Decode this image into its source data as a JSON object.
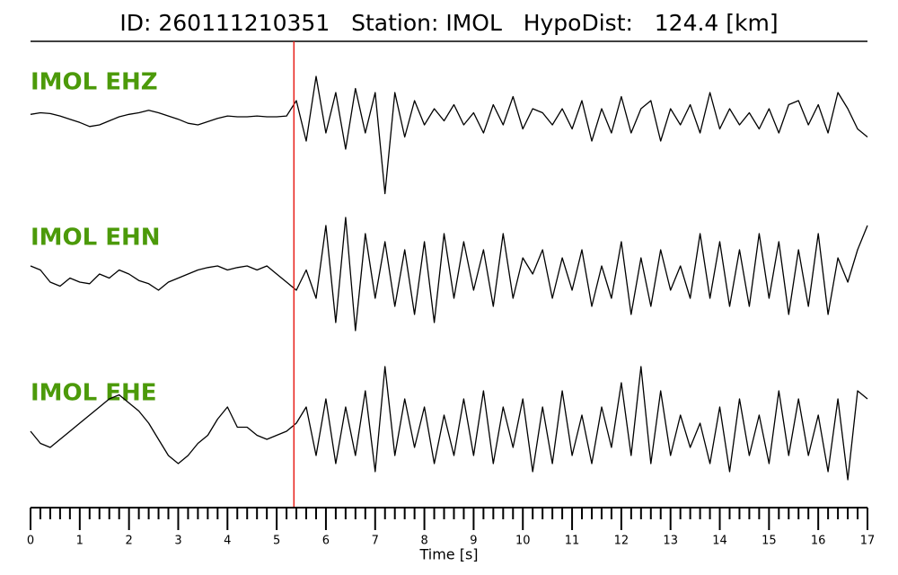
{
  "chart_data": {
    "type": "line",
    "title": "ID: 260111210351   Station: IMOL   HypoDist:   124.4 [km]",
    "xlabel": "Time [s]",
    "xlim": [
      0,
      17
    ],
    "xticks": [
      0,
      1,
      2,
      3,
      4,
      5,
      6,
      7,
      8,
      9,
      10,
      11,
      12,
      13,
      14,
      15,
      16,
      17
    ],
    "ylim": [
      -1,
      1
    ],
    "label_color": "#4c9a0a",
    "marker": {
      "x": 5.35,
      "color": "#e8201a"
    },
    "x": [
      0,
      0.2,
      0.4,
      0.6,
      0.8,
      1,
      1.2,
      1.4,
      1.6,
      1.8,
      2,
      2.2,
      2.4,
      2.6,
      2.8,
      3,
      3.2,
      3.4,
      3.6,
      3.8,
      4,
      4.2,
      4.4,
      4.6,
      4.8,
      5,
      5.2,
      5.4,
      5.6,
      5.8,
      6,
      6.2,
      6.4,
      6.6,
      6.8,
      7,
      7.2,
      7.4,
      7.6,
      7.8,
      8,
      8.2,
      8.4,
      8.6,
      8.8,
      9,
      9.2,
      9.4,
      9.6,
      9.8,
      10,
      10.2,
      10.4,
      10.6,
      10.8,
      11,
      11.2,
      11.4,
      11.6,
      11.8,
      12,
      12.2,
      12.4,
      12.6,
      12.8,
      13,
      13.2,
      13.4,
      13.6,
      13.8,
      14,
      14.2,
      14.4,
      14.6,
      14.8,
      15,
      15.2,
      15.4,
      15.6,
      15.8,
      16,
      16.2,
      16.4,
      16.6,
      16.8,
      17
    ],
    "series": [
      {
        "name": "IMOL EHZ",
        "color": "#000000",
        "values": [
          0.03,
          0.05,
          0.04,
          0.01,
          -0.03,
          -0.07,
          -0.12,
          -0.1,
          -0.05,
          0,
          0.03,
          0.05,
          0.08,
          0.05,
          0.01,
          -0.03,
          -0.08,
          -0.1,
          -0.06,
          -0.02,
          0.01,
          0,
          0,
          0.01,
          0,
          0,
          0.01,
          0.2,
          -0.3,
          0.5,
          -0.2,
          0.3,
          -0.4,
          0.35,
          -0.2,
          0.3,
          -0.95,
          0.3,
          -0.25,
          0.2,
          -0.1,
          0.1,
          -0.05,
          0.15,
          -0.1,
          0.05,
          -0.2,
          0.15,
          -0.1,
          0.25,
          -0.15,
          0.1,
          0.05,
          -0.1,
          0.1,
          -0.15,
          0.2,
          -0.3,
          0.1,
          -0.2,
          0.25,
          -0.2,
          0.1,
          0.2,
          -0.3,
          0.1,
          -0.1,
          0.15,
          -0.2,
          0.3,
          -0.15,
          0.1,
          -0.1,
          0.05,
          -0.15,
          0.1,
          -0.2,
          0.15,
          0.2,
          -0.1,
          0.15,
          -0.2,
          0.3,
          0.1,
          -0.15,
          -0.25
        ]
      },
      {
        "name": "IMOL EHN",
        "color": "#000000",
        "values": [
          0.1,
          0.05,
          -0.1,
          -0.15,
          -0.05,
          -0.1,
          -0.12,
          0,
          -0.05,
          0.05,
          0,
          -0.08,
          -0.12,
          -0.2,
          -0.1,
          -0.05,
          0,
          0.05,
          0.08,
          0.1,
          0.05,
          0.08,
          0.1,
          0.05,
          0.1,
          0,
          -0.1,
          -0.2,
          0.05,
          -0.3,
          0.6,
          -0.6,
          0.7,
          -0.7,
          0.5,
          -0.3,
          0.4,
          -0.4,
          0.3,
          -0.5,
          0.4,
          -0.6,
          0.5,
          -0.3,
          0.4,
          -0.2,
          0.3,
          -0.4,
          0.5,
          -0.3,
          0.2,
          0,
          0.3,
          -0.3,
          0.2,
          -0.2,
          0.3,
          -0.4,
          0.1,
          -0.3,
          0.4,
          -0.5,
          0.2,
          -0.4,
          0.3,
          -0.2,
          0.1,
          -0.3,
          0.5,
          -0.3,
          0.4,
          -0.4,
          0.3,
          -0.4,
          0.5,
          -0.3,
          0.4,
          -0.5,
          0.3,
          -0.4,
          0.5,
          -0.5,
          0.2,
          -0.1,
          0.3,
          0.6
        ]
      },
      {
        "name": "IMOL EHE",
        "color": "#000000",
        "values": [
          0,
          -0.15,
          -0.2,
          -0.1,
          0,
          0.1,
          0.2,
          0.3,
          0.4,
          0.45,
          0.35,
          0.25,
          0.1,
          -0.1,
          -0.3,
          -0.4,
          -0.3,
          -0.15,
          -0.05,
          0.15,
          0.3,
          0.05,
          0.05,
          -0.05,
          -0.1,
          -0.05,
          0,
          0.1,
          0.3,
          -0.3,
          0.4,
          -0.4,
          0.3,
          -0.3,
          0.5,
          -0.5,
          0.8,
          -0.3,
          0.4,
          -0.2,
          0.3,
          -0.4,
          0.2,
          -0.3,
          0.4,
          -0.3,
          0.5,
          -0.4,
          0.3,
          -0.2,
          0.4,
          -0.5,
          0.3,
          -0.4,
          0.5,
          -0.3,
          0.2,
          -0.4,
          0.3,
          -0.2,
          0.6,
          -0.3,
          0.8,
          -0.4,
          0.5,
          -0.3,
          0.2,
          -0.2,
          0.1,
          -0.4,
          0.3,
          -0.5,
          0.4,
          -0.3,
          0.2,
          -0.4,
          0.5,
          -0.3,
          0.4,
          -0.3,
          0.2,
          -0.5,
          0.4,
          -0.6,
          0.5,
          0.4
        ]
      }
    ]
  }
}
